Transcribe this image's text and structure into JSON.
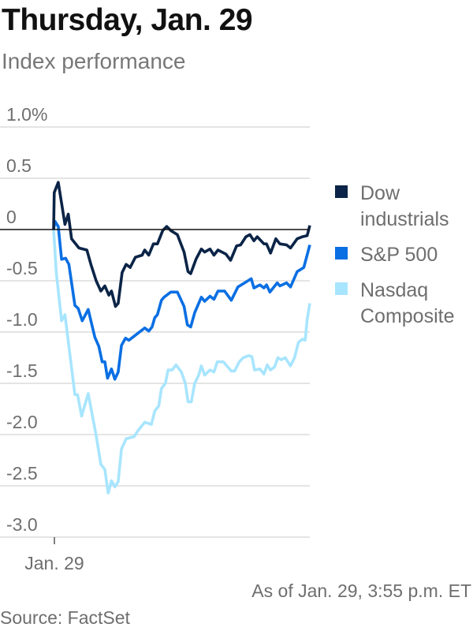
{
  "title": "Thursday, Jan. 29",
  "subtitle": "Index performance",
  "note": "As of Jan. 29, 3:55 p.m. ET",
  "source": "Source: FactSet",
  "chart_data": {
    "type": "line",
    "xlabel": "",
    "ylabel": "",
    "x_tick_labels": [
      "Jan. 29"
    ],
    "x_range": [
      "9:30",
      "15:55"
    ],
    "ylim": [
      -3.0,
      1.0
    ],
    "y_ticks": [
      1.0,
      0.5,
      0,
      -0.5,
      -1.0,
      -1.5,
      -2.0,
      -2.5,
      -3.0
    ],
    "y_tick_labels": [
      "1.0%",
      "0.5",
      "0",
      "-0.5",
      "-1.0",
      "-1.5",
      "-2.0",
      "-2.5",
      "-3.0"
    ],
    "grid": true,
    "legend_position": "right",
    "series": [
      {
        "name": "Dow industrials",
        "legend_lines": [
          "Dow",
          "industrials"
        ],
        "color": "#0b2447",
        "points": [
          [
            "9:30",
            0
          ],
          [
            "9:31",
            0.36
          ],
          [
            "9:37",
            0.46
          ],
          [
            "9:47",
            0.05
          ],
          [
            "9:52",
            0.15
          ],
          [
            "9:57",
            -0.09
          ],
          [
            "10:08",
            -0.18
          ],
          [
            "10:20",
            -0.2
          ],
          [
            "10:26",
            -0.34
          ],
          [
            "10:34",
            -0.5
          ],
          [
            "10:41",
            -0.6
          ],
          [
            "10:47",
            -0.55
          ],
          [
            "10:53",
            -0.64
          ],
          [
            "10:57",
            -0.6
          ],
          [
            "11:03",
            -0.75
          ],
          [
            "11:07",
            -0.72
          ],
          [
            "11:13",
            -0.42
          ],
          [
            "11:19",
            -0.34
          ],
          [
            "11:25",
            -0.37
          ],
          [
            "11:33",
            -0.27
          ],
          [
            "11:43",
            -0.25
          ],
          [
            "11:47",
            -0.2
          ],
          [
            "11:53",
            -0.25
          ],
          [
            "12:00",
            -0.14
          ],
          [
            "12:06",
            -0.14
          ],
          [
            "12:14",
            -0.01
          ],
          [
            "12:20",
            0.03
          ],
          [
            "12:26",
            -0.01
          ],
          [
            "12:36",
            -0.05
          ],
          [
            "12:46",
            -0.22
          ],
          [
            "12:52",
            -0.41
          ],
          [
            "12:56",
            -0.43
          ],
          [
            "13:04",
            -0.29
          ],
          [
            "13:12",
            -0.19
          ],
          [
            "13:17",
            -0.22
          ],
          [
            "13:25",
            -0.19
          ],
          [
            "13:31",
            -0.25
          ],
          [
            "13:37",
            -0.2
          ],
          [
            "13:49",
            -0.24
          ],
          [
            "13:56",
            -0.3
          ],
          [
            "14:05",
            -0.16
          ],
          [
            "14:11",
            -0.15
          ],
          [
            "14:19",
            -0.07
          ],
          [
            "14:25",
            -0.05
          ],
          [
            "14:31",
            -0.11
          ],
          [
            "14:36",
            -0.07
          ],
          [
            "14:46",
            -0.14
          ],
          [
            "14:50",
            -0.14
          ],
          [
            "14:56",
            -0.23
          ],
          [
            "15:04",
            -0.09
          ],
          [
            "15:10",
            -0.14
          ],
          [
            "15:20",
            -0.15
          ],
          [
            "15:26",
            -0.18
          ],
          [
            "15:36",
            -0.09
          ],
          [
            "15:44",
            -0.07
          ],
          [
            "15:51",
            -0.06
          ],
          [
            "15:55",
            0.04
          ]
        ]
      },
      {
        "name": "S&P 500",
        "legend_lines": [
          "S&P 500"
        ],
        "color": "#0a6fe3",
        "points": [
          [
            "9:30",
            0
          ],
          [
            "9:32",
            0.08
          ],
          [
            "9:37",
            0.03
          ],
          [
            "9:42",
            -0.29
          ],
          [
            "9:48",
            -0.28
          ],
          [
            "9:53",
            -0.34
          ],
          [
            "10:02",
            -0.74
          ],
          [
            "10:07",
            -0.77
          ],
          [
            "10:13",
            -0.89
          ],
          [
            "10:22",
            -0.78
          ],
          [
            "10:32",
            -1.05
          ],
          [
            "10:38",
            -1.14
          ],
          [
            "10:43",
            -1.29
          ],
          [
            "10:47",
            -1.29
          ],
          [
            "10:51",
            -1.45
          ],
          [
            "10:57",
            -1.36
          ],
          [
            "11:02",
            -1.46
          ],
          [
            "11:07",
            -1.39
          ],
          [
            "11:12",
            -1.13
          ],
          [
            "11:18",
            -1.06
          ],
          [
            "11:23",
            -1.08
          ],
          [
            "11:37",
            -1.01
          ],
          [
            "11:47",
            -0.96
          ],
          [
            "11:53",
            -0.99
          ],
          [
            "11:58",
            -0.95
          ],
          [
            "12:02",
            -0.86
          ],
          [
            "12:06",
            -0.83
          ],
          [
            "12:12",
            -0.69
          ],
          [
            "12:16",
            -0.66
          ],
          [
            "12:26",
            -0.61
          ],
          [
            "12:36",
            -0.61
          ],
          [
            "12:46",
            -0.75
          ],
          [
            "12:51",
            -0.93
          ],
          [
            "12:56",
            -0.95
          ],
          [
            "13:02",
            -0.81
          ],
          [
            "13:12",
            -0.66
          ],
          [
            "13:17",
            -0.7
          ],
          [
            "13:25",
            -0.65
          ],
          [
            "13:31",
            -0.68
          ],
          [
            "13:37",
            -0.6
          ],
          [
            "13:47",
            -0.6
          ],
          [
            "13:57",
            -0.69
          ],
          [
            "14:07",
            -0.56
          ],
          [
            "14:17",
            -0.52
          ],
          [
            "14:27",
            -0.48
          ],
          [
            "14:31",
            -0.57
          ],
          [
            "14:40",
            -0.54
          ],
          [
            "14:46",
            -0.57
          ],
          [
            "14:50",
            -0.54
          ],
          [
            "14:55",
            -0.61
          ],
          [
            "15:06",
            -0.52
          ],
          [
            "15:10",
            -0.55
          ],
          [
            "15:20",
            -0.52
          ],
          [
            "15:26",
            -0.56
          ],
          [
            "15:36",
            -0.41
          ],
          [
            "15:46",
            -0.37
          ],
          [
            "15:55",
            -0.15
          ]
        ]
      },
      {
        "name": "Nasdaq Composite",
        "legend_lines": [
          "Nasdaq",
          "Composite"
        ],
        "color": "#a8e5fe",
        "points": [
          [
            "9:30",
            0
          ],
          [
            "9:34",
            -0.42
          ],
          [
            "9:42",
            -0.89
          ],
          [
            "9:47",
            -0.83
          ],
          [
            "9:53",
            -1.14
          ],
          [
            "10:02",
            -1.61
          ],
          [
            "10:06",
            -1.61
          ],
          [
            "10:12",
            -1.82
          ],
          [
            "10:22",
            -1.6
          ],
          [
            "10:34",
            -2.01
          ],
          [
            "10:41",
            -2.29
          ],
          [
            "10:47",
            -2.34
          ],
          [
            "10:52",
            -2.57
          ],
          [
            "10:57",
            -2.45
          ],
          [
            "11:02",
            -2.51
          ],
          [
            "11:07",
            -2.46
          ],
          [
            "11:12",
            -2.14
          ],
          [
            "11:19",
            -2.04
          ],
          [
            "11:31",
            -2.02
          ],
          [
            "11:37",
            -1.96
          ],
          [
            "11:47",
            -1.88
          ],
          [
            "11:57",
            -1.9
          ],
          [
            "12:02",
            -1.77
          ],
          [
            "12:08",
            -1.72
          ],
          [
            "12:12",
            -1.55
          ],
          [
            "12:18",
            -1.5
          ],
          [
            "12:22",
            -1.37
          ],
          [
            "12:28",
            -1.37
          ],
          [
            "12:34",
            -1.32
          ],
          [
            "12:42",
            -1.39
          ],
          [
            "12:48",
            -1.5
          ],
          [
            "12:52",
            -1.68
          ],
          [
            "12:57",
            -1.68
          ],
          [
            "13:02",
            -1.5
          ],
          [
            "13:08",
            -1.42
          ],
          [
            "13:12",
            -1.33
          ],
          [
            "13:17",
            -1.42
          ],
          [
            "13:25",
            -1.37
          ],
          [
            "13:31",
            -1.39
          ],
          [
            "13:36",
            -1.29
          ],
          [
            "13:45",
            -1.29
          ],
          [
            "13:57",
            -1.38
          ],
          [
            "14:02",
            -1.38
          ],
          [
            "14:09",
            -1.29
          ],
          [
            "14:15",
            -1.25
          ],
          [
            "14:23",
            -1.23
          ],
          [
            "14:28",
            -1.24
          ],
          [
            "14:32",
            -1.37
          ],
          [
            "14:40",
            -1.36
          ],
          [
            "14:46",
            -1.41
          ],
          [
            "14:51",
            -1.32
          ],
          [
            "14:56",
            -1.37
          ],
          [
            "15:02",
            -1.34
          ],
          [
            "15:07",
            -1.25
          ],
          [
            "15:12",
            -1.27
          ],
          [
            "15:18",
            -1.25
          ],
          [
            "15:26",
            -1.33
          ],
          [
            "15:32",
            -1.25
          ],
          [
            "15:38",
            -1.1
          ],
          [
            "15:44",
            -1.07
          ],
          [
            "15:48",
            -1.08
          ],
          [
            "15:51",
            -0.88
          ],
          [
            "15:55",
            -0.72
          ]
        ]
      }
    ]
  }
}
